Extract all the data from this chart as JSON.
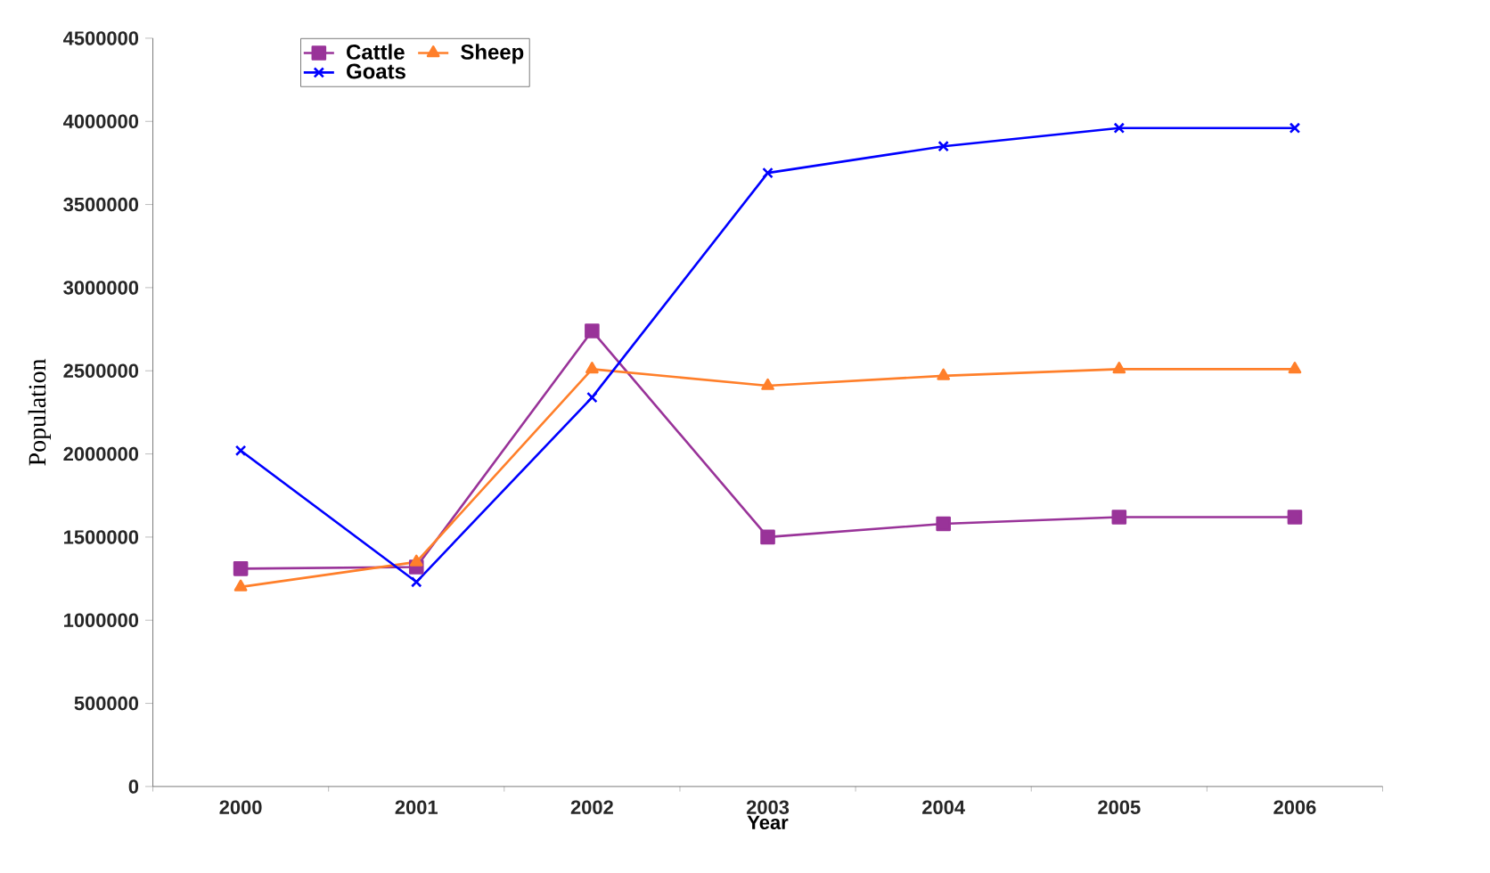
{
  "chart_data": {
    "type": "line",
    "xlabel": "Year",
    "ylabel": "Population",
    "categories": [
      "2000",
      "2001",
      "2002",
      "2003",
      "2004",
      "2005",
      "2006"
    ],
    "series": [
      {
        "name": "Cattle",
        "color": "#993399",
        "marker": "square",
        "values": [
          1310000,
          1320000,
          2740000,
          1500000,
          1580000,
          1620000,
          1620000
        ]
      },
      {
        "name": "Sheep",
        "color": "#ff7f2a",
        "marker": "triangle",
        "values": [
          1200000,
          1350000,
          2510000,
          2410000,
          2470000,
          2510000,
          2510000
        ]
      },
      {
        "name": "Goats",
        "color": "#0000ff",
        "marker": "cross",
        "values": [
          2020000,
          1230000,
          2340000,
          3690000,
          3850000,
          3960000,
          3960000
        ]
      }
    ],
    "ylim": [
      0,
      4500000
    ],
    "yticks": [
      0,
      500000,
      1000000,
      1500000,
      2000000,
      2500000,
      3000000,
      3500000,
      4000000,
      4500000
    ],
    "grid": false,
    "legend": "top left",
    "line_style": "solid"
  }
}
